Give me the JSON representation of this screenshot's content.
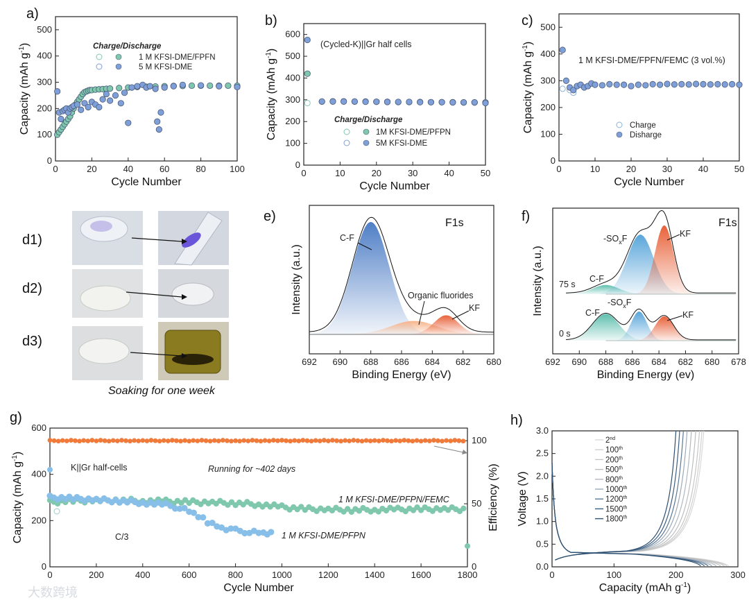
{
  "panels": {
    "a": "a)",
    "b": "b)",
    "c": "c)",
    "d": "d1)",
    "d2": "d2)",
    "d3": "d3)",
    "e": "e)",
    "f": "f)",
    "g": "g)",
    "h": "h)"
  },
  "photos_caption": "Soaking for one week",
  "watermark": "大数跨境",
  "colors": {
    "teal": "#7fc8ad",
    "blue": "#7f9fd8",
    "light_blue": "#88bfe8",
    "orange": "#f07a3a",
    "cf_blue": "#4f7fc6",
    "kf_orange": "#e8623a",
    "sox_blue": "#5aa6da",
    "cf_teal": "#5fbfae"
  },
  "chart_data": [
    {
      "id": "a",
      "type": "scatter",
      "xlabel": "Cycle Number",
      "ylabel": "Capacity (mAh g",
      "ylabel_sup": "-1",
      "ylabel_end": ")",
      "xlim": [
        0,
        100
      ],
      "ylim": [
        0,
        550
      ],
      "xticks": [
        0,
        20,
        40,
        60,
        80,
        100
      ],
      "yticks": [
        0,
        100,
        200,
        300,
        400,
        500
      ],
      "legend_title": "Charge/Discharge",
      "series": [
        {
          "name": "1 M KFSI-DME/FPFN",
          "color": "#7fc8ad",
          "x": [
            1,
            2,
            3,
            4,
            5,
            6,
            7,
            8,
            9,
            10,
            11,
            12,
            13,
            14,
            15,
            16,
            17,
            18,
            19,
            20,
            22,
            24,
            26,
            28,
            30,
            35,
            40,
            45,
            50,
            55,
            60,
            65,
            70,
            75,
            80,
            85,
            90,
            95,
            100
          ],
          "y": [
            100,
            110,
            120,
            130,
            140,
            150,
            160,
            170,
            185,
            200,
            215,
            225,
            235,
            245,
            255,
            262,
            265,
            268,
            270,
            270,
            272,
            273,
            274,
            275,
            276,
            278,
            280,
            282,
            283,
            284,
            285,
            286,
            286,
            287,
            287,
            287,
            287,
            287,
            287
          ]
        },
        {
          "name": "5 M KFSI-DME",
          "color": "#7f9fd8",
          "x": [
            1,
            2,
            3,
            4,
            5,
            6,
            7,
            8,
            9,
            10,
            12,
            14,
            16,
            18,
            20,
            22,
            24,
            26,
            28,
            30,
            33,
            36,
            38,
            40,
            42,
            45,
            48,
            50,
            52,
            55,
            56,
            57,
            58,
            60,
            65,
            70,
            80,
            90,
            100
          ],
          "y": [
            265,
            185,
            160,
            190,
            195,
            200,
            185,
            200,
            205,
            210,
            215,
            195,
            220,
            205,
            225,
            215,
            205,
            235,
            255,
            230,
            250,
            220,
            260,
            145,
            280,
            285,
            290,
            280,
            285,
            275,
            150,
            120,
            185,
            280,
            285,
            290,
            288,
            285,
            282
          ]
        }
      ]
    },
    {
      "id": "b",
      "type": "scatter",
      "xlabel": "Cycle Number",
      "ylabel": "Capacity (mAh g",
      "ylabel_sup": "-1",
      "ylabel_end": ")",
      "xlim": [
        0,
        50
      ],
      "ylim": [
        0,
        650
      ],
      "xticks": [
        0,
        10,
        20,
        30,
        40,
        50
      ],
      "yticks": [
        0,
        100,
        200,
        300,
        400,
        500,
        600
      ],
      "annotation": "(Cycled-K)||Gr half cells",
      "legend_title": "Charge/Discharge",
      "series": [
        {
          "name": "1M KFSI-DME/PFPN",
          "color": "#7fc8ad",
          "x": [
            1,
            5,
            8,
            11,
            14,
            17,
            20,
            23,
            26,
            29,
            32,
            35,
            38,
            41,
            44,
            47,
            50
          ],
          "y": [
            420,
            292,
            293,
            293,
            292,
            292,
            291,
            291,
            290,
            290,
            290,
            289,
            289,
            289,
            288,
            288,
            288
          ]
        },
        {
          "name": "5M KFSI-DME",
          "color": "#7f9fd8",
          "x": [
            1,
            5,
            8,
            11,
            14,
            17,
            20,
            23,
            26,
            29,
            32,
            35,
            38,
            41,
            44,
            47,
            50
          ],
          "y": [
            575,
            292,
            292,
            292,
            292,
            291,
            291,
            290,
            290,
            290,
            289,
            289,
            289,
            288,
            288,
            288,
            285
          ]
        }
      ]
    },
    {
      "id": "c",
      "type": "scatter",
      "xlabel": "Cycle Number",
      "ylabel": "Capacity (mAh g",
      "ylabel_sup": "-1",
      "ylabel_end": ")",
      "xlim": [
        0,
        50
      ],
      "ylim": [
        0,
        550
      ],
      "xticks": [
        0,
        10,
        20,
        30,
        40,
        50
      ],
      "yticks": [
        0,
        100,
        200,
        300,
        400,
        500
      ],
      "annotation": "1 M KFSI-DME/FPFN/FEMC (3 vol.%)",
      "series": [
        {
          "name": "Charge",
          "color": "#ffffff",
          "x": [
            1,
            3,
            4
          ],
          "y": [
            270,
            265,
            255
          ]
        },
        {
          "name": "Disharge",
          "color": "#7f9fd8",
          "x": [
            1,
            2,
            3,
            4,
            5,
            6,
            7,
            8,
            9,
            10,
            12,
            14,
            16,
            18,
            20,
            22,
            24,
            26,
            28,
            30,
            32,
            34,
            36,
            38,
            40,
            42,
            44,
            46,
            48,
            50
          ],
          "y": [
            415,
            300,
            275,
            265,
            280,
            285,
            275,
            280,
            290,
            285,
            283,
            287,
            285,
            285,
            280,
            285,
            283,
            287,
            285,
            288,
            286,
            287,
            286,
            288,
            287,
            286,
            287,
            286,
            287,
            285
          ]
        }
      ]
    },
    {
      "id": "e",
      "type": "line",
      "xlabel": "Binding Energy (eV)",
      "ylabel": "Intensity (a.u.)",
      "xlim": [
        692,
        680
      ],
      "xticks": [
        692,
        690,
        688,
        686,
        684,
        682,
        680
      ],
      "title": "F1s",
      "peaks": [
        {
          "label": "C-F",
          "center": 688.0,
          "height": 1.0,
          "width": 1.2,
          "color": "#4f7fc6"
        },
        {
          "label": "Organic fluorides",
          "center": 685.2,
          "height": 0.12,
          "width": 1.5,
          "color": "#f6b48a"
        },
        {
          "label": "KF",
          "center": 683.1,
          "height": 0.17,
          "width": 0.8,
          "color": "#e8623a"
        }
      ]
    },
    {
      "id": "f",
      "type": "line",
      "xlabel": "Binding Energy (ev)",
      "ylabel": "Intensity (a.u.)",
      "xlim": [
        692,
        678
      ],
      "xticks": [
        692,
        690,
        688,
        686,
        684,
        682,
        680,
        678
      ],
      "title": "F1s",
      "series_labels": [
        "75 s",
        "0 s"
      ],
      "peak_labels": {
        "cf": "C-F",
        "sox_prefix": "-SO",
        "sox_sub": "x",
        "sox_suffix": "F",
        "kf": "KF"
      },
      "peaks_75s": [
        {
          "center": 688.0,
          "height": 0.12,
          "width": 1.0,
          "color": "#5fbfae"
        },
        {
          "center": 685.4,
          "height": 0.78,
          "width": 1.0,
          "color": "#5aa6da"
        },
        {
          "center": 683.6,
          "height": 0.9,
          "width": 0.7,
          "color": "#e8623a"
        }
      ],
      "peaks_0s": [
        {
          "center": 688.0,
          "height": 0.55,
          "width": 1.0,
          "color": "#5fbfae"
        },
        {
          "center": 685.5,
          "height": 0.6,
          "width": 0.6,
          "color": "#5aa6da"
        },
        {
          "center": 683.6,
          "height": 0.5,
          "width": 0.7,
          "color": "#e8623a"
        }
      ]
    },
    {
      "id": "g",
      "type": "scatter",
      "xlabel": "Cycle Number",
      "ylabel": "Capacity (mAh g",
      "ylabel_sup": "-1",
      "ylabel_end": ")",
      "y2label": "Efficiency (%)",
      "xlim": [
        0,
        1800
      ],
      "ylim": [
        0,
        600
      ],
      "y2lim": [
        0,
        110
      ],
      "xticks": [
        0,
        200,
        400,
        600,
        800,
        1000,
        1200,
        1400,
        1600,
        1800
      ],
      "yticks": [
        0,
        200,
        400,
        600
      ],
      "y2ticks": [
        0,
        50,
        100
      ],
      "annotations": [
        "K||Gr half-cells",
        "Running for ~402 days",
        "C/3"
      ],
      "series": [
        {
          "name": "1 M KFSI-DME/PFPN/FEMC",
          "color": "#7fc8ad",
          "x": [
            0,
            100,
            200,
            300,
            400,
            500,
            600,
            700,
            800,
            900,
            1000,
            1100,
            1200,
            1300,
            1400,
            1500,
            1600,
            1700,
            1800
          ],
          "y": [
            280,
            285,
            287,
            288,
            285,
            283,
            280,
            278,
            275,
            270,
            258,
            250,
            248,
            246,
            247,
            248,
            249,
            250,
            248
          ]
        },
        {
          "name": "1 M KFSI-DME/PFPN",
          "color": "#88bfe8",
          "x": [
            0,
            100,
            200,
            300,
            400,
            500,
            560,
            620,
            680,
            740,
            800,
            860,
            920,
            970
          ],
          "y": [
            300,
            295,
            290,
            285,
            278,
            268,
            255,
            230,
            195,
            170,
            158,
            150,
            145,
            142
          ]
        },
        {
          "name": "Efficiency",
          "color": "#f07a3a",
          "x": [
            0,
            200,
            400,
            600,
            800,
            1000,
            1200,
            1400,
            1600,
            1800
          ],
          "y": [
            100,
            100,
            100,
            100,
            100,
            100,
            100,
            100,
            100,
            100
          ]
        }
      ]
    },
    {
      "id": "h",
      "type": "line",
      "xlabel": "Capacity (mAh g",
      "xlabel_sup": "-1",
      "xlabel_end": ")",
      "ylabel": "Voltage (V)",
      "xlim": [
        0,
        300
      ],
      "ylim": [
        0,
        3.0
      ],
      "xticks": [
        0,
        100,
        200,
        300
      ],
      "yticks": [
        0.0,
        0.5,
        1.0,
        1.5,
        2.0,
        2.5,
        3.0
      ],
      "series": [
        {
          "name": "2",
          "sup": "nd",
          "capacity": 285,
          "color": "#d8d8d8"
        },
        {
          "name": "100",
          "sup": "th",
          "capacity": 282,
          "color": "#cfcfcf"
        },
        {
          "name": "200",
          "sup": "th",
          "capacity": 278,
          "color": "#c6c6c6"
        },
        {
          "name": "500",
          "sup": "th",
          "capacity": 272,
          "color": "#bdbdbd"
        },
        {
          "name": "800",
          "sup": "th",
          "capacity": 265,
          "color": "#b0b8c0"
        },
        {
          "name": "1000",
          "sup": "th",
          "capacity": 258,
          "color": "#9aa9b8"
        },
        {
          "name": "1200",
          "sup": "th",
          "capacity": 252,
          "color": "#5a7896"
        },
        {
          "name": "1500",
          "sup": "th",
          "capacity": 246,
          "color": "#3c5f80"
        },
        {
          "name": "1800",
          "sup": "th",
          "capacity": 240,
          "color": "#2d4f70"
        }
      ]
    }
  ]
}
